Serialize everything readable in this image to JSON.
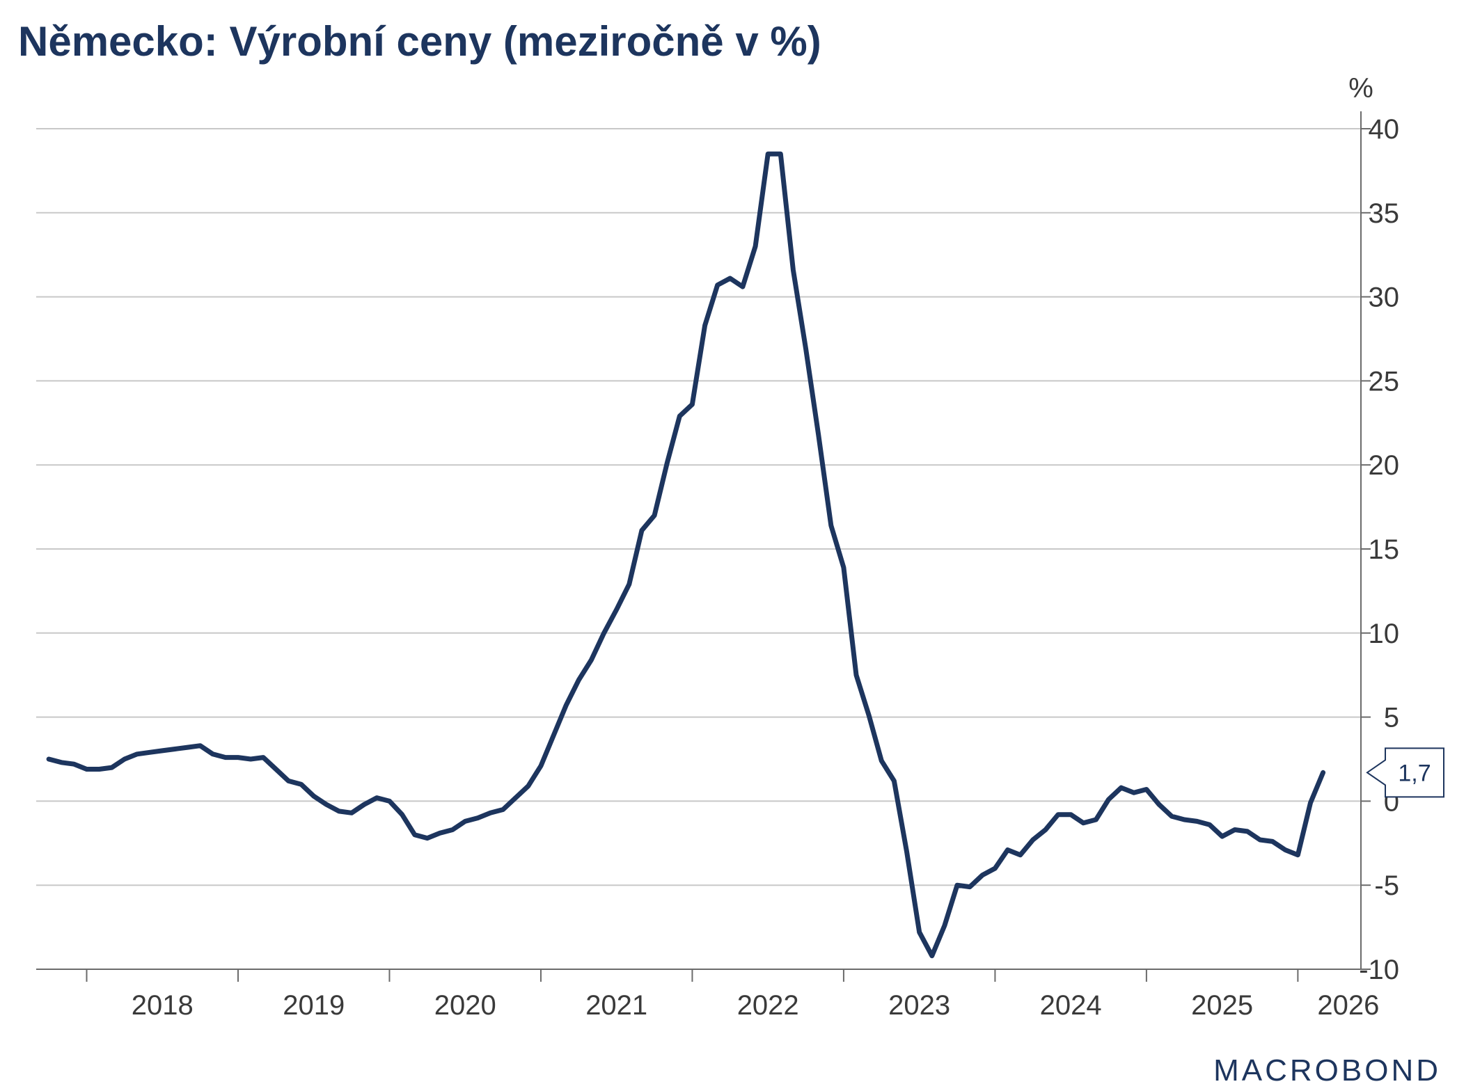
{
  "chart_data": {
    "type": "line",
    "title": "Německo: Výrobní ceny (meziročně v %)",
    "unit_label": "%",
    "y_axis_position": "right",
    "ylim": [
      -10,
      40
    ],
    "y_ticks": [
      40,
      35,
      30,
      25,
      20,
      15,
      10,
      5,
      0,
      -5,
      -10
    ],
    "y_tick_labels": [
      "40",
      "35",
      "30",
      "25",
      "20",
      "15",
      "10",
      "5",
      "0",
      "-5",
      "-10"
    ],
    "xlim": [
      "2017-09",
      "2026-06"
    ],
    "x_tick_labels": [
      "2018",
      "2019",
      "2020",
      "2021",
      "2022",
      "2023",
      "2024",
      "2025",
      "2026"
    ],
    "x_tick_dates": [
      "2018-07",
      "2019-07",
      "2020-07",
      "2021-07",
      "2022-07",
      "2023-07",
      "2024-07",
      "2025-07",
      "2026-05"
    ],
    "x_boundary_ticks": [
      "2018-01",
      "2019-01",
      "2020-01",
      "2021-01",
      "2022-01",
      "2023-01",
      "2024-01",
      "2025-01",
      "2026-01"
    ],
    "grid": true,
    "last_value_label": "1,7",
    "series": [
      {
        "color": "#1d355e",
        "x": [
          "2017-10",
          "2017-11",
          "2017-12",
          "2018-01",
          "2018-02",
          "2018-03",
          "2018-04",
          "2018-05",
          "2018-06",
          "2018-07",
          "2018-08",
          "2018-09",
          "2018-10",
          "2018-11",
          "2018-12",
          "2019-01",
          "2019-02",
          "2019-03",
          "2019-04",
          "2019-05",
          "2019-06",
          "2019-07",
          "2019-08",
          "2019-09",
          "2019-10",
          "2019-11",
          "2019-12",
          "2020-01",
          "2020-02",
          "2020-03",
          "2020-04",
          "2020-05",
          "2020-06",
          "2020-07",
          "2020-08",
          "2020-09",
          "2020-10",
          "2020-11",
          "2020-12",
          "2021-01",
          "2021-02",
          "2021-03",
          "2021-04",
          "2021-05",
          "2021-06",
          "2021-07",
          "2021-08",
          "2021-09",
          "2021-10",
          "2021-11",
          "2021-12",
          "2022-01",
          "2022-02",
          "2022-03",
          "2022-04",
          "2022-05",
          "2022-06",
          "2022-07",
          "2022-08",
          "2022-09",
          "2022-10",
          "2022-11",
          "2022-12",
          "2023-01",
          "2023-02",
          "2023-03",
          "2023-04",
          "2023-05",
          "2023-06",
          "2023-07",
          "2023-08",
          "2023-09",
          "2023-10",
          "2023-11",
          "2023-12",
          "2024-01",
          "2024-02",
          "2024-03",
          "2024-04",
          "2024-05",
          "2024-06",
          "2024-07",
          "2024-08",
          "2024-09",
          "2024-10",
          "2024-11",
          "2024-12",
          "2025-01",
          "2025-02",
          "2025-03",
          "2025-04",
          "2025-05",
          "2025-06",
          "2025-07",
          "2025-08",
          "2025-09",
          "2025-10",
          "2025-11",
          "2025-12",
          "2026-01",
          "2026-02",
          "2026-03"
        ],
        "values": [
          2.5,
          2.3,
          2.2,
          1.9,
          1.9,
          2.0,
          2.5,
          2.8,
          2.9,
          3.0,
          3.1,
          3.2,
          3.3,
          2.8,
          2.6,
          2.6,
          2.5,
          2.6,
          1.9,
          1.2,
          1.0,
          0.3,
          -0.2,
          -0.6,
          -0.7,
          -0.2,
          0.2,
          0.0,
          -0.8,
          -2.0,
          -2.2,
          -1.9,
          -1.7,
          -1.2,
          -1.0,
          -0.7,
          -0.5,
          0.2,
          0.9,
          2.1,
          3.9,
          5.7,
          7.2,
          8.4,
          10.0,
          11.4,
          12.9,
          16.1,
          17.0,
          20.1,
          22.9,
          23.6,
          28.3,
          30.7,
          31.1,
          30.6,
          33.0,
          38.5,
          38.5,
          31.6,
          26.9,
          21.8,
          16.4,
          13.9,
          7.5,
          5.1,
          2.4,
          1.2,
          -3.0,
          -7.8,
          -9.2,
          -7.4,
          -5.0,
          -5.1,
          -4.4,
          -4.0,
          -2.9,
          -3.2,
          -2.3,
          -1.7,
          -0.8,
          -0.8,
          -1.3,
          -1.1,
          0.1,
          0.8,
          0.5,
          0.7,
          -0.2,
          -0.9,
          -1.1,
          -1.2,
          -1.4,
          -2.1,
          -1.7,
          -1.8,
          -2.3,
          -2.4,
          -2.9,
          -3.2,
          -0.1,
          1.7
        ]
      }
    ],
    "logo_text": "MACROBOND"
  }
}
